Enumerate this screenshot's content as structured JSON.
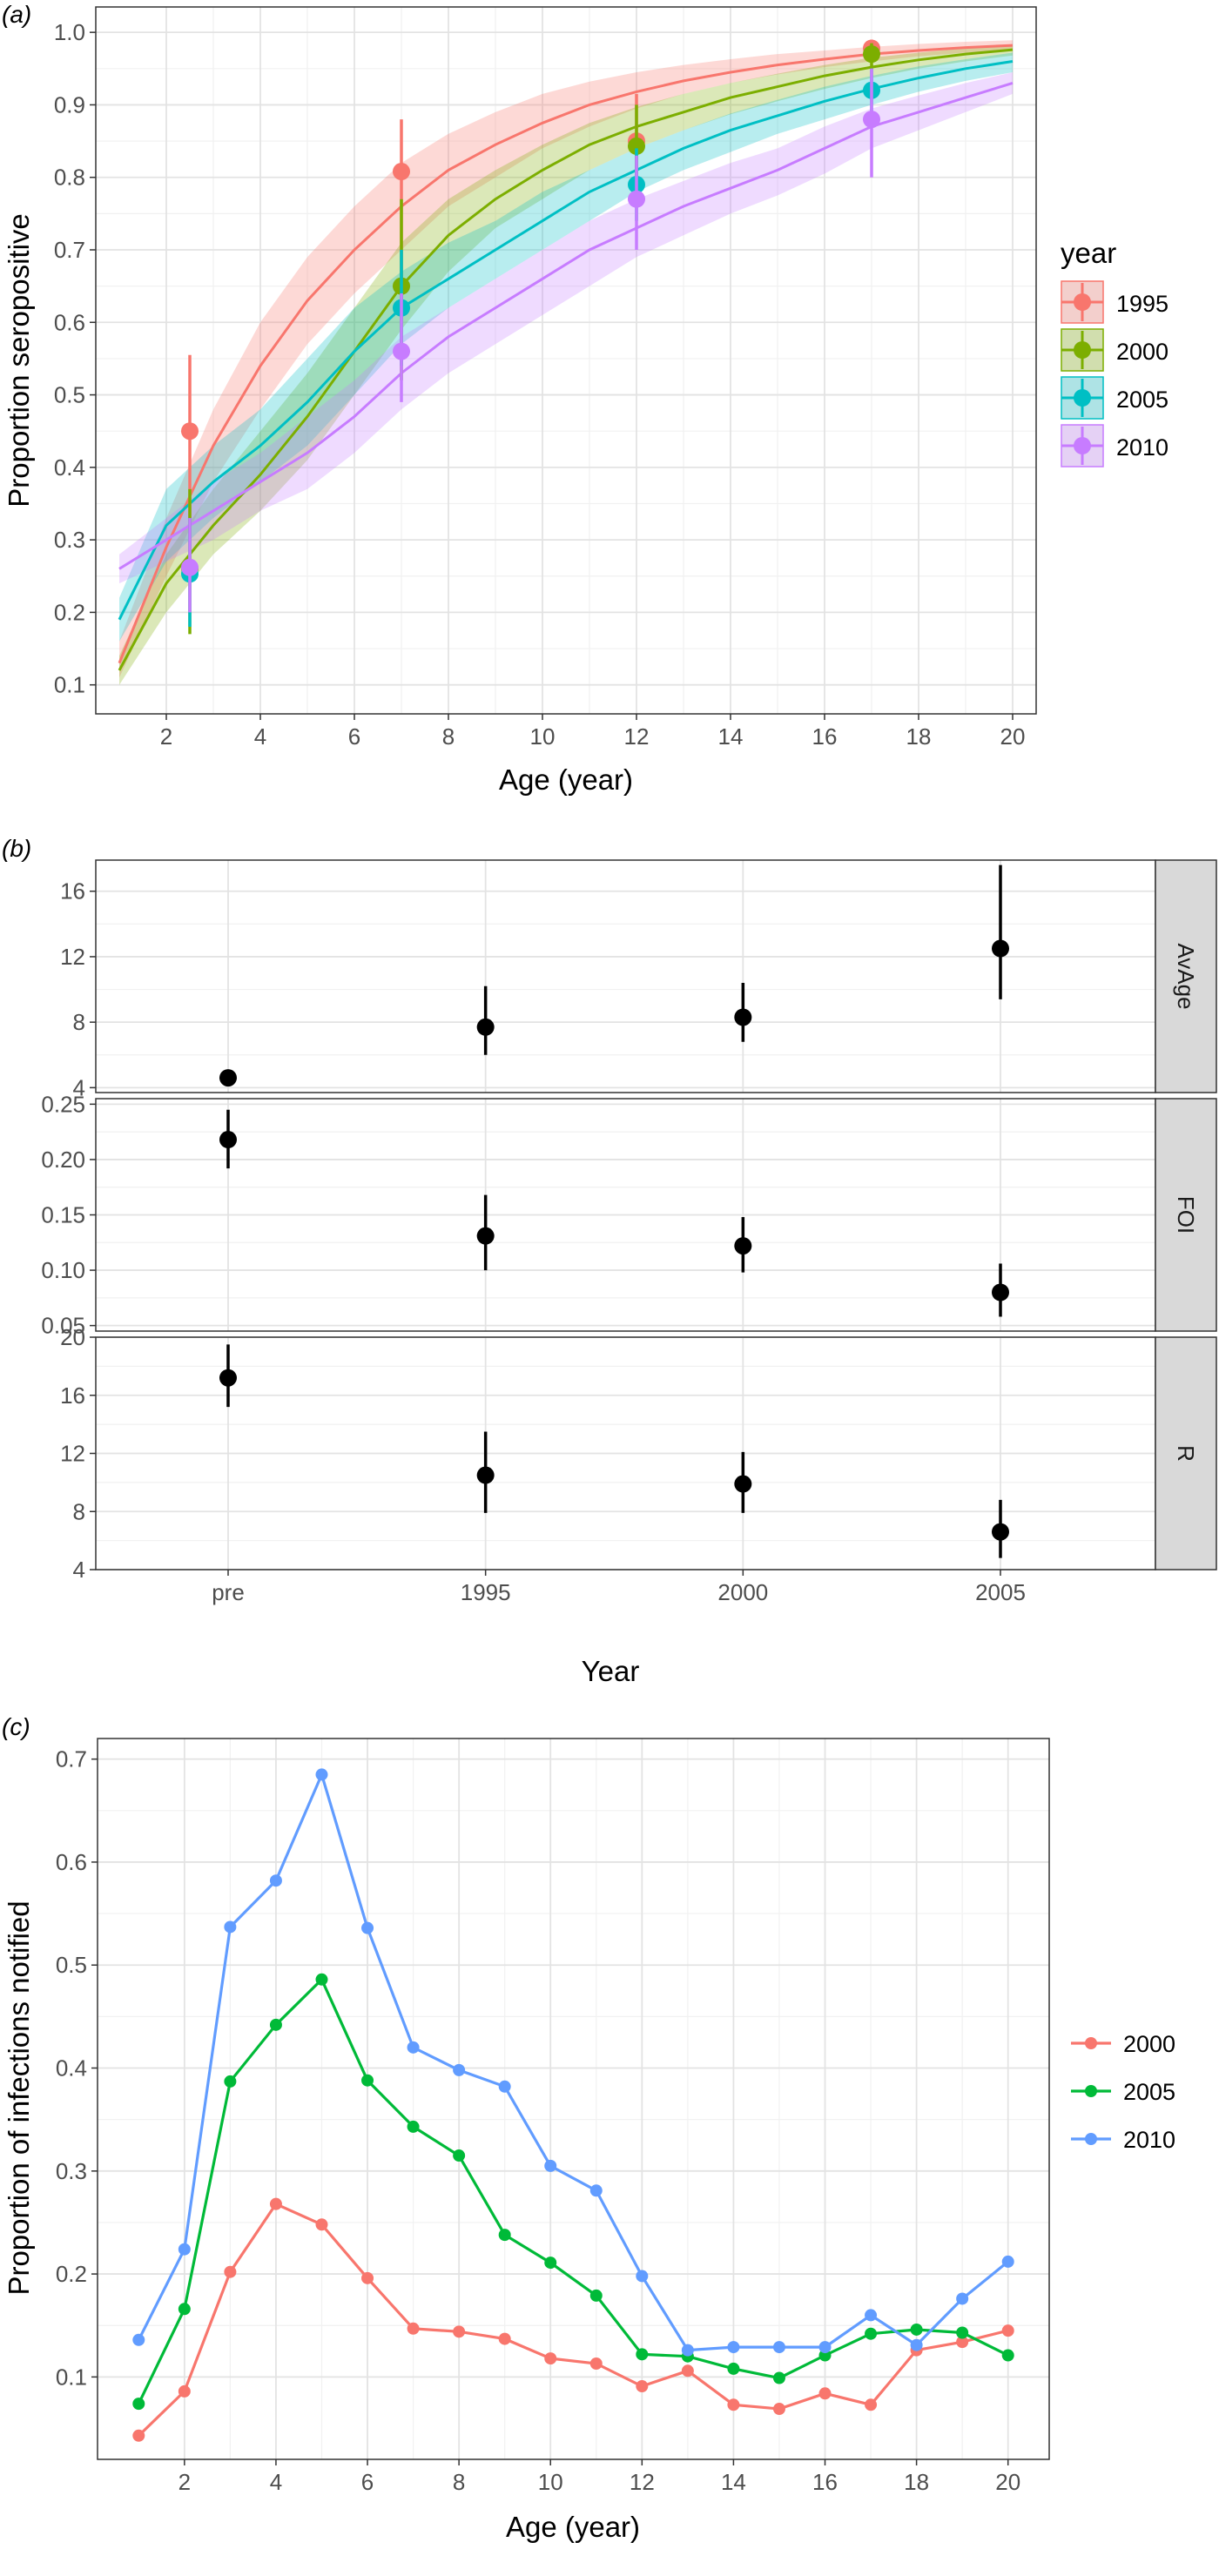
{
  "panels": {
    "a": {
      "tag": "(a)",
      "chart_data": {
        "type": "line",
        "xlabel": "Age (year)",
        "ylabel": "Proportion seropositive",
        "xlim": [
          0.5,
          20.5
        ],
        "ylim": [
          0.06,
          1.035
        ],
        "xticks": [
          2,
          4,
          6,
          8,
          10,
          12,
          14,
          16,
          18,
          20
        ],
        "yticks": [
          0.1,
          0.2,
          0.3,
          0.4,
          0.5,
          0.6,
          0.7,
          0.8,
          0.9,
          1.0
        ],
        "xtick_labels": [
          "2",
          "4",
          "6",
          "8",
          "10",
          "12",
          "14",
          "16",
          "18",
          "20"
        ],
        "ytick_labels": [
          "0.1",
          "0.2",
          "0.3",
          "0.4",
          "0.5",
          "0.6",
          "0.7",
          "0.8",
          "0.9",
          "1.0"
        ],
        "grid": true,
        "legend_title": "year",
        "legend_position": "right",
        "series": [
          {
            "name": "1995",
            "color": "#F8766D",
            "curve_x": [
              1,
              2,
              3,
              4,
              5,
              6,
              7,
              8,
              9,
              10,
              11,
              12,
              13,
              14,
              15,
              16,
              17,
              18,
              19,
              20
            ],
            "curve_y": [
              0.13,
              0.29,
              0.43,
              0.54,
              0.63,
              0.7,
              0.76,
              0.81,
              0.845,
              0.875,
              0.9,
              0.918,
              0.933,
              0.945,
              0.955,
              0.963,
              0.97,
              0.975,
              0.979,
              0.982
            ],
            "band_lower": [
              0.11,
              0.25,
              0.38,
              0.48,
              0.57,
              0.64,
              0.7,
              0.76,
              0.8,
              0.84,
              0.87,
              0.895,
              0.915,
              0.93,
              0.942,
              0.952,
              0.96,
              0.967,
              0.972,
              0.976
            ],
            "band_upper": [
              0.16,
              0.33,
              0.48,
              0.6,
              0.69,
              0.76,
              0.82,
              0.86,
              0.89,
              0.915,
              0.932,
              0.945,
              0.955,
              0.963,
              0.97,
              0.975,
              0.98,
              0.984,
              0.987,
              0.989
            ],
            "points": [
              {
                "x": 2.5,
                "y": 0.45,
                "lo": 0.24,
                "hi": 0.555
              },
              {
                "x": 7,
                "y": 0.808,
                "lo": 0.63,
                "hi": 0.88
              },
              {
                "x": 12,
                "y": 0.85,
                "lo": 0.77,
                "hi": 0.915
              },
              {
                "x": 17,
                "y": 0.978,
                "lo": 0.96,
                "hi": 0.99
              }
            ]
          },
          {
            "name": "2000",
            "color": "#7CAE00",
            "curve_x": [
              1,
              2,
              3,
              4,
              5,
              6,
              7,
              8,
              9,
              10,
              11,
              12,
              13,
              14,
              15,
              16,
              17,
              18,
              19,
              20
            ],
            "curve_y": [
              0.12,
              0.24,
              0.32,
              0.39,
              0.47,
              0.56,
              0.65,
              0.72,
              0.77,
              0.81,
              0.845,
              0.87,
              0.89,
              0.91,
              0.925,
              0.94,
              0.952,
              0.962,
              0.97,
              0.976
            ],
            "band_lower": [
              0.1,
              0.2,
              0.28,
              0.34,
              0.41,
              0.5,
              0.59,
              0.67,
              0.73,
              0.77,
              0.81,
              0.84,
              0.865,
              0.887,
              0.905,
              0.922,
              0.937,
              0.95,
              0.96,
              0.968
            ],
            "band_upper": [
              0.14,
              0.28,
              0.37,
              0.45,
              0.53,
              0.62,
              0.71,
              0.77,
              0.81,
              0.845,
              0.875,
              0.897,
              0.915,
              0.93,
              0.943,
              0.955,
              0.965,
              0.972,
              0.978,
              0.983
            ],
            "points": [
              {
                "x": 2.5,
                "y": 0.26,
                "lo": 0.17,
                "hi": 0.37
              },
              {
                "x": 7,
                "y": 0.65,
                "lo": 0.52,
                "hi": 0.77
              },
              {
                "x": 12,
                "y": 0.843,
                "lo": 0.77,
                "hi": 0.9
              },
              {
                "x": 17,
                "y": 0.97,
                "lo": 0.95,
                "hi": 0.985
              }
            ]
          },
          {
            "name": "2005",
            "color": "#00BFC4",
            "curve_x": [
              1,
              2,
              3,
              4,
              5,
              6,
              7,
              8,
              9,
              10,
              11,
              12,
              13,
              14,
              15,
              16,
              17,
              18,
              19,
              20
            ],
            "curve_y": [
              0.19,
              0.32,
              0.38,
              0.43,
              0.49,
              0.56,
              0.62,
              0.66,
              0.7,
              0.74,
              0.78,
              0.81,
              0.84,
              0.865,
              0.885,
              0.905,
              0.922,
              0.937,
              0.95,
              0.96
            ],
            "band_lower": [
              0.16,
              0.27,
              0.33,
              0.38,
              0.43,
              0.5,
              0.57,
              0.62,
              0.66,
              0.7,
              0.74,
              0.78,
              0.81,
              0.835,
              0.86,
              0.88,
              0.9,
              0.918,
              0.933,
              0.945
            ],
            "band_upper": [
              0.22,
              0.37,
              0.43,
              0.48,
              0.55,
              0.62,
              0.67,
              0.71,
              0.74,
              0.78,
              0.81,
              0.84,
              0.865,
              0.888,
              0.907,
              0.925,
              0.94,
              0.953,
              0.963,
              0.972
            ],
            "points": [
              {
                "x": 2.5,
                "y": 0.253,
                "lo": 0.18,
                "hi": 0.33
              },
              {
                "x": 7,
                "y": 0.62,
                "lo": 0.54,
                "hi": 0.7
              },
              {
                "x": 12,
                "y": 0.79,
                "lo": 0.74,
                "hi": 0.84
              },
              {
                "x": 17,
                "y": 0.92,
                "lo": 0.89,
                "hi": 0.95
              }
            ]
          },
          {
            "name": "2010",
            "color": "#C77CFF",
            "curve_x": [
              1,
              2,
              3,
              4,
              5,
              6,
              7,
              8,
              9,
              10,
              11,
              12,
              13,
              14,
              15,
              16,
              17,
              18,
              19,
              20
            ],
            "curve_y": [
              0.26,
              0.3,
              0.34,
              0.38,
              0.42,
              0.47,
              0.53,
              0.58,
              0.62,
              0.66,
              0.7,
              0.73,
              0.76,
              0.785,
              0.81,
              0.84,
              0.87,
              0.89,
              0.91,
              0.93
            ],
            "band_lower": [
              0.24,
              0.27,
              0.3,
              0.34,
              0.37,
              0.42,
              0.48,
              0.53,
              0.57,
              0.61,
              0.65,
              0.69,
              0.72,
              0.75,
              0.775,
              0.805,
              0.84,
              0.865,
              0.89,
              0.915
            ],
            "band_upper": [
              0.28,
              0.33,
              0.38,
              0.42,
              0.47,
              0.52,
              0.58,
              0.62,
              0.66,
              0.7,
              0.74,
              0.77,
              0.795,
              0.82,
              0.84,
              0.87,
              0.895,
              0.913,
              0.93,
              0.945
            ],
            "points": [
              {
                "x": 2.5,
                "y": 0.262,
                "lo": 0.2,
                "hi": 0.33
              },
              {
                "x": 7,
                "y": 0.56,
                "lo": 0.49,
                "hi": 0.64
              },
              {
                "x": 12,
                "y": 0.77,
                "lo": 0.7,
                "hi": 0.83
              },
              {
                "x": 17,
                "y": 0.88,
                "lo": 0.8,
                "hi": 0.95
              }
            ]
          }
        ]
      }
    },
    "b": {
      "tag": "(b)",
      "chart_data": {
        "type": "scatter",
        "xlabel": "Year",
        "categories": [
          "pre",
          "1995",
          "2000",
          "2005"
        ],
        "grid": true,
        "facets": [
          {
            "label": "AvAge",
            "ylim": [
              3.7,
              17.9
            ],
            "yticks": [
              4,
              8,
              12,
              16
            ],
            "ytick_labels": [
              "4",
              "8",
              "12",
              "16"
            ],
            "points": [
              {
                "x": "pre",
                "y": 4.6,
                "lo": 4.4,
                "hi": 4.85
              },
              {
                "x": "1995",
                "y": 7.7,
                "lo": 6,
                "hi": 10.2
              },
              {
                "x": "2000",
                "y": 8.3,
                "lo": 6.8,
                "hi": 10.4
              },
              {
                "x": "2005",
                "y": 12.5,
                "lo": 9.4,
                "hi": 17.6
              }
            ]
          },
          {
            "label": "FOI",
            "ylim": [
              0.045,
              0.255
            ],
            "yticks": [
              0.05,
              0.1,
              0.15,
              0.2,
              0.25
            ],
            "ytick_labels": [
              "0.05",
              "0.10",
              "0.15",
              "0.20",
              "0.25"
            ],
            "points": [
              {
                "x": "pre",
                "y": 0.218,
                "lo": 0.192,
                "hi": 0.245
              },
              {
                "x": "1995",
                "y": 0.131,
                "lo": 0.1,
                "hi": 0.168
              },
              {
                "x": "2000",
                "y": 0.122,
                "lo": 0.098,
                "hi": 0.148
              },
              {
                "x": "2005",
                "y": 0.08,
                "lo": 0.058,
                "hi": 0.106
              }
            ]
          },
          {
            "label": "R",
            "ylim": [
              4,
              20
            ],
            "yticks": [
              4,
              8,
              12,
              16,
              20
            ],
            "ytick_labels": [
              "4",
              "8",
              "12",
              "16",
              "20"
            ],
            "points": [
              {
                "x": "pre",
                "y": 17.2,
                "lo": 15.2,
                "hi": 19.5
              },
              {
                "x": "1995",
                "y": 10.5,
                "lo": 7.9,
                "hi": 13.5
              },
              {
                "x": "2000",
                "y": 9.9,
                "lo": 7.9,
                "hi": 12.1
              },
              {
                "x": "2005",
                "y": 6.6,
                "lo": 4.8,
                "hi": 8.8
              }
            ]
          }
        ]
      }
    },
    "c": {
      "tag": "(c)",
      "chart_data": {
        "type": "line",
        "xlabel": "Age (year)",
        "ylabel": "Proportion of infections notified",
        "xlim": [
          0.1,
          20.9
        ],
        "ylim": [
          0.02,
          0.72
        ],
        "xticks": [
          2,
          4,
          6,
          8,
          10,
          12,
          14,
          16,
          18,
          20
        ],
        "yticks": [
          0.1,
          0.2,
          0.3,
          0.4,
          0.5,
          0.6,
          0.7
        ],
        "xtick_labels": [
          "2",
          "4",
          "6",
          "8",
          "10",
          "12",
          "14",
          "16",
          "18",
          "20"
        ],
        "ytick_labels": [
          "0.1",
          "0.2",
          "0.3",
          "0.4",
          "0.5",
          "0.6",
          "0.7"
        ],
        "grid": true,
        "legend_position": "right",
        "x": [
          1,
          2,
          3,
          4,
          5,
          6,
          7,
          8,
          9,
          10,
          11,
          12,
          13,
          14,
          15,
          16,
          17,
          18,
          19,
          20
        ],
        "series": [
          {
            "name": "2000",
            "color": "#F8766D",
            "values": [
              0.043,
              0.086,
              0.202,
              0.268,
              0.248,
              0.196,
              0.147,
              0.144,
              0.137,
              0.118,
              0.113,
              0.091,
              0.106,
              0.073,
              0.069,
              0.084,
              0.073,
              0.126,
              0.134,
              0.145
            ]
          },
          {
            "name": "2005",
            "color": "#00BA38",
            "values": [
              0.074,
              0.166,
              0.387,
              0.442,
              0.486,
              0.388,
              0.343,
              0.315,
              0.238,
              0.211,
              0.179,
              0.122,
              0.12,
              0.108,
              0.099,
              0.121,
              0.142,
              0.146,
              0.143,
              0.121
            ]
          },
          {
            "name": "2010",
            "color": "#619CFF",
            "values": [
              0.136,
              0.224,
              0.537,
              0.582,
              0.685,
              0.536,
              0.42,
              0.398,
              0.382,
              0.305,
              0.281,
              0.198,
              0.126,
              0.129,
              0.129,
              0.129,
              0.16,
              0.131,
              0.176,
              0.212
            ]
          }
        ]
      }
    }
  }
}
